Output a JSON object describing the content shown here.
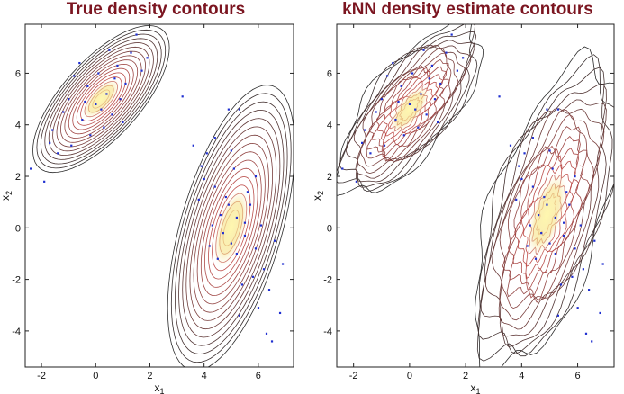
{
  "chart_data": [
    {
      "type": "contour",
      "title": "True density contours",
      "xlabel": "x1",
      "ylabel": "x2",
      "xlim": [
        -2.6,
        7.3
      ],
      "ylim": [
        -5.4,
        7.9
      ],
      "xticks": [
        "-2",
        "0",
        "2",
        "4",
        "6"
      ],
      "yticks": [
        "-4",
        "-2",
        "0",
        "2",
        "4",
        "6"
      ],
      "components": [
        {
          "center": [
            0.2,
            5.0
          ],
          "sigma_major": 1.25,
          "sigma_minor": 0.55,
          "angle_deg": 48
        },
        {
          "center": [
            5.0,
            0.0
          ],
          "sigma_major": 2.0,
          "sigma_minor": 0.72,
          "angle_deg": 74
        }
      ],
      "points": [
        [
          -1.6,
          3.8
        ],
        [
          -1.2,
          4.5
        ],
        [
          -0.8,
          5.9
        ],
        [
          -0.5,
          4.2
        ],
        [
          -0.3,
          5.5
        ],
        [
          0.0,
          4.8
        ],
        [
          0.1,
          6.0
        ],
        [
          0.4,
          5.2
        ],
        [
          0.6,
          4.4
        ],
        [
          0.8,
          6.3
        ],
        [
          1.1,
          5.6
        ],
        [
          1.3,
          6.8
        ],
        [
          1.5,
          7.5
        ],
        [
          -0.9,
          3.2
        ],
        [
          -1.4,
          2.9
        ],
        [
          -1.9,
          1.8
        ],
        [
          -2.4,
          2.3
        ],
        [
          0.3,
          3.9
        ],
        [
          -0.2,
          3.6
        ],
        [
          0.9,
          5.0
        ],
        [
          1.7,
          6.1
        ],
        [
          -0.6,
          6.4
        ],
        [
          0.5,
          6.9
        ],
        [
          1.0,
          4.1
        ],
        [
          -1.0,
          5.0
        ],
        [
          0.2,
          4.6
        ],
        [
          -0.4,
          4.9
        ],
        [
          0.7,
          5.8
        ],
        [
          1.9,
          6.6
        ],
        [
          -1.7,
          3.3
        ],
        [
          3.2,
          5.1
        ],
        [
          4.9,
          4.6
        ],
        [
          5.3,
          4.6
        ],
        [
          3.6,
          3.2
        ],
        [
          4.1,
          2.9
        ],
        [
          4.4,
          1.6
        ],
        [
          4.8,
          1.2
        ],
        [
          5.2,
          0.4
        ],
        [
          5.5,
          -0.3
        ],
        [
          4.6,
          0.5
        ],
        [
          5.9,
          -0.8
        ],
        [
          6.2,
          -1.6
        ],
        [
          5.0,
          -0.6
        ],
        [
          4.3,
          0.1
        ],
        [
          5.7,
          0.9
        ],
        [
          6.4,
          -2.4
        ],
        [
          6.0,
          -3.1
        ],
        [
          5.4,
          -2.2
        ],
        [
          6.6,
          -0.5
        ],
        [
          4.0,
          1.9
        ],
        [
          4.5,
          -1.2
        ],
        [
          5.1,
          2.3
        ],
        [
          5.8,
          -1.9
        ],
        [
          6.8,
          -3.3
        ],
        [
          6.3,
          -4.1
        ],
        [
          3.9,
          2.4
        ],
        [
          4.7,
          -0.2
        ],
        [
          5.6,
          1.4
        ],
        [
          6.1,
          0.1
        ],
        [
          4.2,
          -0.7
        ],
        [
          5.3,
          -3.4
        ],
        [
          5.0,
          3.0
        ],
        [
          6.5,
          -4.4
        ],
        [
          4.4,
          3.5
        ],
        [
          5.9,
          2.0
        ],
        [
          3.8,
          1.1
        ],
        [
          6.9,
          -1.4
        ],
        [
          5.2,
          -1.0
        ],
        [
          4.9,
          0.9
        ],
        [
          5.5,
          0.2
        ]
      ]
    },
    {
      "type": "contour",
      "title": "kNN density estimate contours",
      "xlabel": "x1",
      "ylabel": "x2",
      "xlim": [
        -2.6,
        7.3
      ],
      "ylim": [
        -5.4,
        7.9
      ],
      "xticks": [
        "-2",
        "0",
        "2",
        "4",
        "6"
      ],
      "yticks": [
        "-4",
        "-2",
        "0",
        "2",
        "4",
        "6"
      ],
      "components": [
        {
          "center": [
            0.0,
            4.6
          ],
          "sigma_major": 1.35,
          "sigma_minor": 0.6,
          "angle_deg": 52
        },
        {
          "center": [
            4.9,
            0.5
          ],
          "sigma_major": 2.1,
          "sigma_minor": 0.8,
          "angle_deg": 72
        }
      ],
      "points": [
        [
          -1.6,
          3.8
        ],
        [
          -1.2,
          4.5
        ],
        [
          -0.8,
          5.9
        ],
        [
          -0.5,
          4.2
        ],
        [
          -0.3,
          5.5
        ],
        [
          0.0,
          4.8
        ],
        [
          0.1,
          6.0
        ],
        [
          0.4,
          5.2
        ],
        [
          0.6,
          4.4
        ],
        [
          0.8,
          6.3
        ],
        [
          1.1,
          5.6
        ],
        [
          1.3,
          6.8
        ],
        [
          1.5,
          7.5
        ],
        [
          -0.9,
          3.2
        ],
        [
          -1.4,
          2.9
        ],
        [
          -1.9,
          1.8
        ],
        [
          -2.4,
          2.3
        ],
        [
          0.3,
          3.9
        ],
        [
          -0.2,
          3.6
        ],
        [
          0.9,
          5.0
        ],
        [
          1.7,
          6.1
        ],
        [
          -0.6,
          6.4
        ],
        [
          0.5,
          6.9
        ],
        [
          1.0,
          4.1
        ],
        [
          -1.0,
          5.0
        ],
        [
          0.2,
          4.6
        ],
        [
          -0.4,
          4.9
        ],
        [
          0.7,
          5.8
        ],
        [
          1.9,
          6.6
        ],
        [
          -1.7,
          3.3
        ],
        [
          3.2,
          5.1
        ],
        [
          4.9,
          4.6
        ],
        [
          5.3,
          4.6
        ],
        [
          3.6,
          3.2
        ],
        [
          4.1,
          2.9
        ],
        [
          4.4,
          1.6
        ],
        [
          4.8,
          1.2
        ],
        [
          5.2,
          0.4
        ],
        [
          5.5,
          -0.3
        ],
        [
          4.6,
          0.5
        ],
        [
          5.9,
          -0.8
        ],
        [
          6.2,
          -1.6
        ],
        [
          5.0,
          -0.6
        ],
        [
          4.3,
          0.1
        ],
        [
          5.7,
          0.9
        ],
        [
          6.4,
          -2.4
        ],
        [
          6.0,
          -3.1
        ],
        [
          5.4,
          -2.2
        ],
        [
          6.6,
          -0.5
        ],
        [
          4.0,
          1.9
        ],
        [
          4.5,
          -1.2
        ],
        [
          5.1,
          2.3
        ],
        [
          5.8,
          -1.9
        ],
        [
          6.8,
          -3.3
        ],
        [
          6.3,
          -4.1
        ],
        [
          3.9,
          2.4
        ],
        [
          4.7,
          -0.2
        ],
        [
          5.6,
          1.4
        ],
        [
          6.1,
          0.1
        ],
        [
          4.2,
          -0.7
        ],
        [
          5.3,
          -3.4
        ],
        [
          5.0,
          3.0
        ],
        [
          6.5,
          -4.4
        ],
        [
          4.4,
          3.5
        ],
        [
          5.9,
          2.0
        ],
        [
          3.8,
          1.1
        ],
        [
          6.9,
          -1.4
        ],
        [
          5.2,
          -1.0
        ],
        [
          4.9,
          0.9
        ],
        [
          5.5,
          0.2
        ]
      ]
    }
  ],
  "colors": {
    "title": "#7b1520",
    "contour_outer": "#2a2a2a",
    "contour_inner": "#c0504d",
    "peak": "#fff8b0",
    "points": "#1f2fd0"
  }
}
